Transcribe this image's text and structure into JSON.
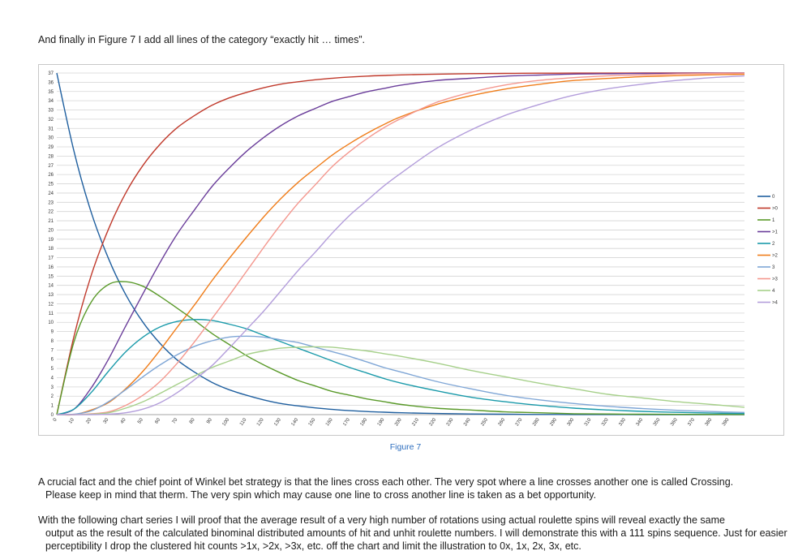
{
  "intro": "And finally in Figure 7 I add all lines of the category “exactly hit … times”.",
  "caption": "Figure 7",
  "paragraphs": [
    {
      "first": "A crucial fact and the chief point of Winkel bet strategy is that the lines cross each other. The very spot where a line crosses another one is called Crossing.",
      "rest": "Please keep in mind that therm. The very spin which may cause one line to cross another line is taken as a bet opportunity."
    },
    {
      "first": "With the following chart series I will proof that the average result of a very high number of rotations using actual roulette spins will reveal exactly the same",
      "rest": "output as the result of the calculated binominal distributed amounts of hit and unhit roulette numbers. I will demonstrate this with a 111 spins sequence. Just for easier perceptibility I drop the clustered hit counts >1x, >2x, >3x, etc. off the chart and limit the illustration to 0x, 1x, 2x, 3x, etc."
    }
  ],
  "chart_data": {
    "type": "line",
    "title": "",
    "xlabel": "",
    "ylabel": "",
    "xlim": [
      0,
      399
    ],
    "ylim": [
      0,
      37
    ],
    "x_ticks": [
      0,
      10,
      20,
      30,
      40,
      50,
      60,
      70,
      80,
      90,
      100,
      110,
      120,
      130,
      140,
      150,
      160,
      170,
      180,
      190,
      200,
      210,
      220,
      230,
      240,
      250,
      260,
      270,
      280,
      290,
      300,
      310,
      320,
      330,
      340,
      350,
      360,
      370,
      380,
      390
    ],
    "y_ticks": [
      0,
      1,
      2,
      3,
      4,
      5,
      6,
      7,
      8,
      9,
      10,
      11,
      12,
      13,
      14,
      15,
      16,
      17,
      18,
      19,
      20,
      21,
      22,
      23,
      24,
      25,
      26,
      27,
      28,
      29,
      30,
      31,
      32,
      33,
      34,
      35,
      36,
      37
    ],
    "grid": "horizontal",
    "legend_position": "right",
    "x": [
      0,
      10,
      20,
      30,
      40,
      50,
      60,
      70,
      80,
      90,
      100,
      110,
      120,
      130,
      140,
      150,
      160,
      170,
      180,
      190,
      200,
      220,
      240,
      260,
      280,
      300,
      320,
      340,
      360,
      380,
      399
    ],
    "series": [
      {
        "name": "0",
        "color": "#1f5f9f",
        "values": [
          37,
          28.5,
          21.9,
          16.9,
          13.0,
          10.0,
          7.7,
          5.9,
          4.6,
          3.5,
          2.7,
          2.1,
          1.6,
          1.2,
          0.95,
          0.73,
          0.56,
          0.43,
          0.33,
          0.26,
          0.2,
          0.12,
          0.07,
          0.04,
          0.02,
          0.01,
          0.01,
          0,
          0,
          0,
          0
        ]
      },
      {
        "name": ">0",
        "color": "#c0392b",
        "values": [
          0,
          8.5,
          15.1,
          20.1,
          24.0,
          27.0,
          29.3,
          31.1,
          32.4,
          33.5,
          34.3,
          34.9,
          35.4,
          35.8,
          36.05,
          36.27,
          36.44,
          36.57,
          36.67,
          36.74,
          36.8,
          36.88,
          36.93,
          36.96,
          36.98,
          36.99,
          36.99,
          37,
          37,
          37,
          37
        ]
      },
      {
        "name": "1",
        "color": "#5a9a2a",
        "values": [
          0,
          7.9,
          12.2,
          14.1,
          14.4,
          13.9,
          12.8,
          11.5,
          10.2,
          8.8,
          7.6,
          6.4,
          5.4,
          4.5,
          3.7,
          3.1,
          2.5,
          2.1,
          1.7,
          1.4,
          1.1,
          0.7,
          0.5,
          0.3,
          0.2,
          0.1,
          0.07,
          0.04,
          0.03,
          0.02,
          0.01
        ]
      },
      {
        "name": ">1",
        "color": "#6a3d9a",
        "values": [
          0,
          0.6,
          2.9,
          6.0,
          9.6,
          13.1,
          16.5,
          19.6,
          22.2,
          24.7,
          26.7,
          28.5,
          30.0,
          31.3,
          32.35,
          33.17,
          33.94,
          34.47,
          34.97,
          35.34,
          35.7,
          36.18,
          36.43,
          36.66,
          36.78,
          36.89,
          36.92,
          36.96,
          36.97,
          36.98,
          36.99
        ]
      },
      {
        "name": "2",
        "color": "#1a9aaa",
        "values": [
          0,
          0.6,
          2.4,
          4.7,
          6.8,
          8.4,
          9.5,
          10.1,
          10.3,
          10.2,
          9.8,
          9.3,
          8.6,
          7.9,
          7.2,
          6.5,
          5.8,
          5.1,
          4.5,
          3.9,
          3.4,
          2.6,
          1.9,
          1.4,
          1.0,
          0.7,
          0.5,
          0.35,
          0.25,
          0.17,
          0.12
        ]
      },
      {
        "name": ">2",
        "color": "#f07d1a",
        "values": [
          0,
          0,
          0.5,
          1.3,
          2.8,
          4.7,
          7.0,
          9.5,
          11.9,
          14.5,
          16.9,
          19.2,
          21.4,
          23.4,
          25.15,
          26.67,
          28.14,
          29.37,
          30.47,
          31.44,
          32.3,
          33.58,
          34.53,
          35.26,
          35.78,
          36.19,
          36.42,
          36.61,
          36.72,
          36.81,
          36.87
        ]
      },
      {
        "name": "3",
        "color": "#7fa6d6",
        "values": [
          0,
          0.05,
          0.4,
          1.4,
          2.7,
          4.1,
          5.4,
          6.5,
          7.4,
          8.0,
          8.4,
          8.5,
          8.4,
          8.1,
          7.8,
          7.3,
          6.8,
          6.3,
          5.7,
          5.1,
          4.6,
          3.6,
          2.8,
          2.1,
          1.6,
          1.2,
          0.9,
          0.65,
          0.47,
          0.33,
          0.24
        ]
      },
      {
        "name": ">3",
        "color": "#f4978e",
        "values": [
          0,
          0,
          0.1,
          0.3,
          1.0,
          2.1,
          3.6,
          5.6,
          7.9,
          10.4,
          12.9,
          15.5,
          18.1,
          20.6,
          22.9,
          24.9,
          26.9,
          28.5,
          29.9,
          31.1,
          32.1,
          33.8,
          34.9,
          35.7,
          36.2,
          36.5,
          36.7,
          36.8,
          36.9,
          36.95,
          36.97
        ]
      },
      {
        "name": "4",
        "color": "#a6d08a",
        "values": [
          0,
          0,
          0.05,
          0.2,
          0.7,
          1.4,
          2.3,
          3.3,
          4.2,
          5.1,
          5.8,
          6.5,
          6.9,
          7.2,
          7.3,
          7.35,
          7.3,
          7.1,
          6.9,
          6.6,
          6.3,
          5.6,
          4.8,
          4.1,
          3.4,
          2.8,
          2.2,
          1.8,
          1.4,
          1.1,
          0.8
        ]
      },
      {
        "name": ">4",
        "color": "#b39ddb",
        "values": [
          0,
          0,
          0,
          0.05,
          0.2,
          0.6,
          1.3,
          2.4,
          3.8,
          5.3,
          7.2,
          9.2,
          11.2,
          13.4,
          15.6,
          17.6,
          19.7,
          21.6,
          23.2,
          24.8,
          26.2,
          28.8,
          30.8,
          32.4,
          33.6,
          34.6,
          35.3,
          35.8,
          36.2,
          36.5,
          36.7
        ]
      }
    ]
  }
}
